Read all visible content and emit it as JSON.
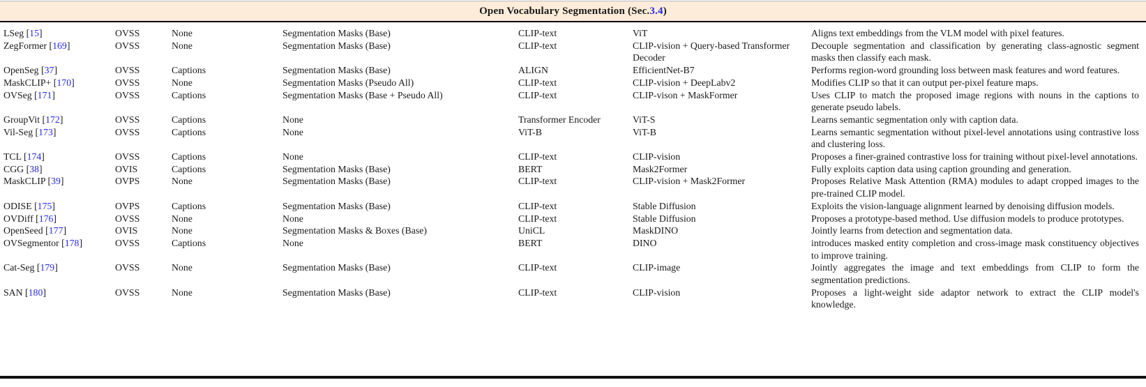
{
  "header": {
    "title_prefix": "Open Vocabulary Segmentation (Sec. ",
    "section": "3.4",
    "title_suffix": ")"
  },
  "link_color": "#2828e6",
  "band_color": "#fcecd9",
  "table": {
    "rows": [
      {
        "method": "LSeg",
        "cite": "15",
        "task": "OVSS",
        "supervision": "None",
        "masks": "Segmentation Masks (Base)",
        "text_encoder": "CLIP-text",
        "vision_model": "ViT",
        "description": "Aligns text embeddings from the VLM model with pixel features."
      },
      {
        "method": "ZegFormer",
        "cite": "169",
        "task": "OVSS",
        "supervision": "None",
        "masks": "Segmentation Masks (Base)",
        "text_encoder": "CLIP-text",
        "vision_model": "CLIP-vision + Query-based Transformer Decoder",
        "description": "Decouple segmentation and classification by generating class-agnostic segment masks then classify each mask."
      },
      {
        "method": "OpenSeg",
        "cite": "37",
        "task": "OVSS",
        "supervision": "Captions",
        "masks": "Segmentation Masks (Base)",
        "text_encoder": "ALIGN",
        "vision_model": "EfficientNet-B7",
        "description": "Performs region-word grounding loss between mask features and word features."
      },
      {
        "method": "MaskCLIP+",
        "cite": "170",
        "task": "OVSS",
        "supervision": "None",
        "masks": "Segmentation Masks (Pseudo All)",
        "text_encoder": "CLIP-text",
        "vision_model": "CLIP-vision + DeepLabv2",
        "description": "Modifies CLIP so that it can output per-pixel feature maps."
      },
      {
        "method": "OVSeg",
        "cite": "171",
        "task": "OVSS",
        "supervision": "Captions",
        "masks": "Segmentation Masks (Base + Pseudo All)",
        "text_encoder": "CLIP-text",
        "vision_model": "CLIP-vison + MaskFormer",
        "description": "Uses CLIP to match the proposed image regions with nouns in the captions to generate pseudo labels."
      },
      {
        "method": "GroupVit",
        "cite": "172",
        "task": "OVSS",
        "supervision": "Captions",
        "masks": "None",
        "text_encoder": "Transformer Encoder",
        "vision_model": "ViT-S",
        "description": "Learns semantic segmentation only with caption data."
      },
      {
        "method": "Vil-Seg",
        "cite": "173",
        "task": "OVSS",
        "supervision": "Captions",
        "masks": "None",
        "text_encoder": "ViT-B",
        "vision_model": "ViT-B",
        "description": "Learns semantic segmentation without pixel-level annotations using contrastive loss and clustering loss."
      },
      {
        "method": "TCL",
        "cite": "174",
        "task": "OVSS",
        "supervision": "Captions",
        "masks": "None",
        "text_encoder": "CLIP-text",
        "vision_model": "CLIP-vision",
        "description": "Proposes a finer-grained contrastive loss for training without pixel-level annotations."
      },
      {
        "method": "CGG",
        "cite": "38",
        "task": "OVIS",
        "supervision": "Captions",
        "masks": "Segmentation Masks (Base)",
        "text_encoder": "BERT",
        "vision_model": "Mask2Former",
        "description": "Fully exploits caption data using caption grounding and generation."
      },
      {
        "method": "MaskCLIP",
        "cite": "39",
        "task": "OVPS",
        "supervision": "None",
        "masks": "Segmentation Masks (Base)",
        "text_encoder": "CLIP-text",
        "vision_model": "CLIP-vision + Mask2Former",
        "description": "Proposes Relative Mask Attention (RMA) modules to adapt cropped images to the pre-trained CLIP model."
      },
      {
        "method": "ODISE",
        "cite": "175",
        "task": "OVPS",
        "supervision": "Captions",
        "masks": "Segmentation Masks (Base)",
        "text_encoder": "CLIP-text",
        "vision_model": "Stable Diffusion",
        "description": "Exploits the vision-language alignment learned by denoising diffusion models."
      },
      {
        "method": "OVDiff",
        "cite": "176",
        "task": "OVSS",
        "supervision": "None",
        "masks": "None",
        "text_encoder": "CLIP-text",
        "vision_model": "Stable Diffusion",
        "description": "Proposes a prototype-based method. Use diffusion models to produce prototypes."
      },
      {
        "method": "OpenSeed",
        "cite": "177",
        "task": "OVIS",
        "supervision": "None",
        "masks": "Segmentation Masks & Boxes (Base)",
        "text_encoder": "UniCL",
        "vision_model": "MaskDINO",
        "description": "Jointly learns from detection and segmentation data."
      },
      {
        "method": "OVSegmentor",
        "cite": "178",
        "task": "OVSS",
        "supervision": "Captions",
        "masks": "None",
        "text_encoder": "BERT",
        "vision_model": "DINO",
        "description": "introduces masked entity completion and cross-image mask constituency objectives to improve training."
      },
      {
        "method": "Cat-Seg",
        "cite": "179",
        "task": "OVSS",
        "supervision": "None",
        "masks": "Segmentation Masks (Base)",
        "text_encoder": "CLIP-text",
        "vision_model": "CLIP-image",
        "description": "Jointly aggregates the image and text embeddings from CLIP to form the segmentation predictions."
      },
      {
        "method": "SAN",
        "cite": "180",
        "task": "OVSS",
        "supervision": "None",
        "masks": "Segmentation Masks (Base)",
        "text_encoder": "CLIP-text",
        "vision_model": "CLIP-vision",
        "description": "Proposes a light-weight side adaptor network to extract the CLIP model's knowledge."
      }
    ]
  }
}
